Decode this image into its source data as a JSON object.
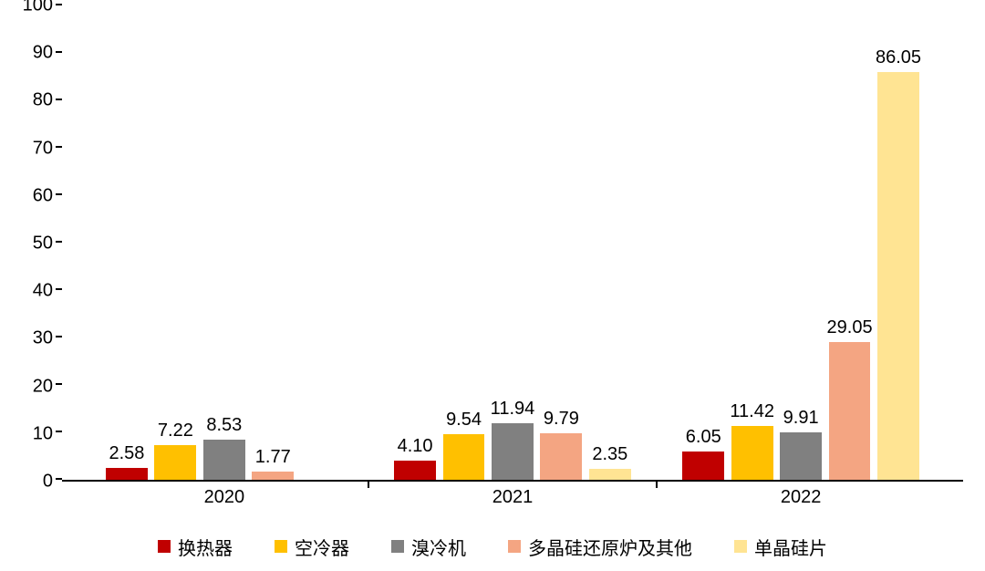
{
  "chart": {
    "type": "bar",
    "background_color": "#ffffff",
    "axis_color": "#000000",
    "text_color": "#000000",
    "tick_font_size_pt": 15,
    "label_font_size_pt": 15,
    "value_label_font_size_pt": 15,
    "y": {
      "min": 0,
      "max": 100,
      "step": 10,
      "ticks": [
        0,
        10,
        20,
        30,
        40,
        50,
        60,
        70,
        80,
        90,
        100
      ]
    },
    "x_categories": [
      "2020",
      "2021",
      "2022"
    ],
    "series": [
      {
        "key": "s1",
        "name": "换热器",
        "color": "#c00000"
      },
      {
        "key": "s2",
        "name": "空冷器",
        "color": "#ffc000"
      },
      {
        "key": "s3",
        "name": "溴冷机",
        "color": "#808080"
      },
      {
        "key": "s4",
        "name": "多晶硅还原炉及其他",
        "color": "#f4a582"
      },
      {
        "key": "s5",
        "name": "单晶硅片",
        "color": "#ffe493"
      }
    ],
    "data": {
      "2020": {
        "s1": 2.58,
        "s2": 7.22,
        "s3": 8.53,
        "s4": 1.77,
        "s5": null
      },
      "2021": {
        "s1": 4.1,
        "s2": 9.54,
        "s3": 11.94,
        "s4": 9.79,
        "s5": 2.35
      },
      "2022": {
        "s1": 6.05,
        "s2": 11.42,
        "s3": 9.91,
        "s4": 29.05,
        "s5": 86.05
      }
    },
    "value_labels": {
      "2020": {
        "s1": "2.58",
        "s2": "7.22",
        "s3": "8.53",
        "s4": "1.77"
      },
      "2021": {
        "s1": "4.10",
        "s2": "9.54",
        "s3": "11.94",
        "s4": "9.79",
        "s5": "2.35"
      },
      "2022": {
        "s1": "6.05",
        "s2": "11.42",
        "s3": "9.91",
        "s4": "29.05",
        "s5": "86.05"
      }
    },
    "layout": {
      "bar_width_ratio": 0.145,
      "bar_gap_ratio": 0.024,
      "group_gap_ratio": 0.1
    }
  }
}
